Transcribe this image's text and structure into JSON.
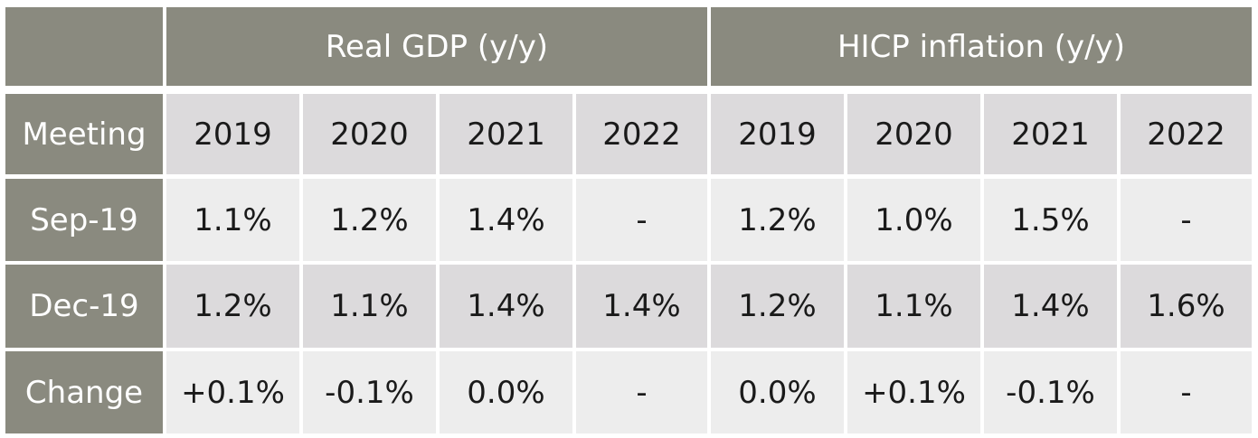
{
  "table": {
    "group_headers": [
      "Real GDP (y/y)",
      "HICP inflation (y/y)"
    ],
    "row_header_label": "Meeting",
    "years": [
      "2019",
      "2020",
      "2021",
      "2022",
      "2019",
      "2020",
      "2021",
      "2022"
    ],
    "rows": [
      {
        "label": "Sep-19",
        "cells": [
          "1.1%",
          "1.2%",
          "1.4%",
          "-",
          "1.2%",
          "1.0%",
          "1.5%",
          "-"
        ]
      },
      {
        "label": "Dec-19",
        "cells": [
          "1.2%",
          "1.1%",
          "1.4%",
          "1.4%",
          "1.2%",
          "1.1%",
          "1.4%",
          "1.6%"
        ]
      },
      {
        "label": "Change",
        "cells": [
          "+0.1%",
          "-0.1%",
          "0.0%",
          "-",
          "0.0%",
          "+0.1%",
          "-0.1%",
          "-"
        ]
      }
    ]
  },
  "colors": {
    "header_bg": "#8a8a7f",
    "header_text": "#ffffff",
    "light_cell": "#ededed",
    "dark_cell": "#dcdadc"
  }
}
